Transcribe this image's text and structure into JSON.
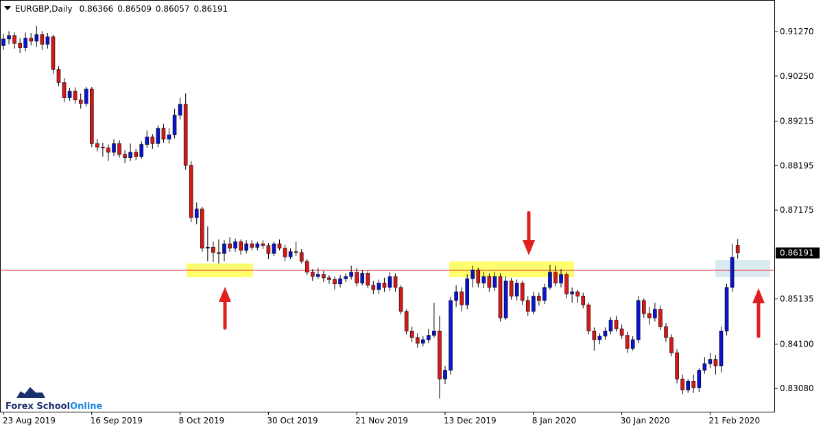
{
  "chart_data": {
    "type": "candlestick",
    "title": "EURGBP,Daily",
    "categories": [
      "23 Aug 2019",
      null,
      null,
      null,
      null,
      null,
      null,
      null,
      null,
      null,
      null,
      null,
      null,
      null,
      null,
      null,
      "16 Sep 2019",
      null,
      null,
      null,
      null,
      null,
      null,
      null,
      null,
      null,
      null,
      null,
      null,
      null,
      null,
      null,
      "8 Oct 2019",
      null,
      null,
      null,
      null,
      null,
      null,
      null,
      null,
      null,
      null,
      null,
      null,
      null,
      null,
      null,
      "30 Oct 2019",
      null,
      null,
      null,
      null,
      null,
      null,
      null,
      null,
      null,
      null,
      null,
      null,
      null,
      null,
      null,
      "21 Nov 2019",
      null,
      null,
      null,
      null,
      null,
      null,
      null,
      null,
      null,
      null,
      null,
      null,
      null,
      null,
      null,
      "13 Dec 2019",
      null,
      null,
      null,
      null,
      null,
      null,
      null,
      null,
      null,
      null,
      null,
      null,
      null,
      null,
      null,
      "8 Jan 2020",
      null,
      null,
      null,
      null,
      null,
      null,
      null,
      null,
      null,
      null,
      null,
      null,
      null,
      null,
      null,
      "30 Jan 2020",
      null,
      null,
      null,
      null,
      null,
      null,
      null,
      null,
      null,
      null,
      null,
      null,
      null,
      null,
      null,
      "21 Feb 2020",
      null,
      null,
      null,
      null,
      null
    ],
    "open": [
      0.9095,
      0.911,
      0.9118,
      0.91,
      0.909,
      0.9112,
      0.9105,
      0.912,
      0.9098,
      0.9115,
      0.904,
      0.901,
      0.8975,
      0.899,
      0.897,
      0.8962,
      0.8995,
      0.887,
      0.8862,
      0.886,
      0.885,
      0.887,
      0.8845,
      0.8838,
      0.885,
      0.884,
      0.8868,
      0.8885,
      0.887,
      0.8905,
      0.888,
      0.889,
      0.8935,
      0.896,
      0.882,
      0.87,
      0.872,
      0.863,
      0.8632,
      0.862,
      0.8618,
      0.864,
      0.863,
      0.8645,
      0.8625,
      0.864,
      0.8632,
      0.864,
      0.8636,
      0.8618,
      0.864,
      0.863,
      0.861,
      0.8622,
      0.862,
      0.86,
      0.8575,
      0.8565,
      0.857,
      0.8562,
      0.8558,
      0.8548,
      0.856,
      0.8565,
      0.8575,
      0.855,
      0.8572,
      0.8545,
      0.8535,
      0.855,
      0.854,
      0.8565,
      0.854,
      0.8485,
      0.844,
      0.8425,
      0.8412,
      0.842,
      0.843,
      0.844,
      0.833,
      0.835,
      0.851,
      0.853,
      0.85,
      0.856,
      0.858,
      0.855,
      0.8565,
      0.854,
      0.8565,
      0.847,
      0.8555,
      0.852,
      0.855,
      0.851,
      0.8485,
      0.852,
      0.851,
      0.854,
      0.8575,
      0.855,
      0.857,
      0.8525,
      0.853,
      0.852,
      0.85,
      0.844,
      0.842,
      0.8428,
      0.844,
      0.8465,
      0.8445,
      0.843,
      0.84,
      0.842,
      0.851,
      0.848,
      0.847,
      0.849,
      0.845,
      0.8425,
      0.839,
      0.833,
      0.8305,
      0.8325,
      0.831,
      0.835,
      0.8365,
      0.8375,
      0.836,
      0.844,
      0.854,
      0.86366
    ],
    "high": [
      0.9122,
      0.9128,
      0.9125,
      0.9112,
      0.9125,
      0.9124,
      0.914,
      0.9128,
      0.9124,
      0.912,
      0.9048,
      0.902,
      0.8998,
      0.8999,
      0.8985,
      0.9,
      0.9,
      0.888,
      0.8872,
      0.8868,
      0.888,
      0.8878,
      0.8855,
      0.887,
      0.8858,
      0.8875,
      0.89,
      0.8892,
      0.8912,
      0.8915,
      0.8905,
      0.895,
      0.8975,
      0.8985,
      0.883,
      0.8735,
      0.8725,
      0.868,
      0.8645,
      0.865,
      0.8648,
      0.8655,
      0.8652,
      0.865,
      0.8648,
      0.8648,
      0.8645,
      0.8648,
      0.8642,
      0.8645,
      0.865,
      0.8638,
      0.863,
      0.8645,
      0.8628,
      0.8605,
      0.8582,
      0.8585,
      0.8578,
      0.8568,
      0.8565,
      0.8568,
      0.8572,
      0.859,
      0.8585,
      0.858,
      0.8578,
      0.8555,
      0.8558,
      0.8562,
      0.8575,
      0.8572,
      0.8545,
      0.849,
      0.845,
      0.8435,
      0.8428,
      0.8445,
      0.8505,
      0.8475,
      0.836,
      0.8518,
      0.8545,
      0.854,
      0.857,
      0.859,
      0.8585,
      0.8575,
      0.8572,
      0.8575,
      0.8572,
      0.8565,
      0.8562,
      0.8558,
      0.8555,
      0.852,
      0.853,
      0.8528,
      0.8548,
      0.8592,
      0.859,
      0.8582,
      0.8575,
      0.854,
      0.8535,
      0.8528,
      0.8505,
      0.8448,
      0.8435,
      0.8448,
      0.8472,
      0.8475,
      0.8455,
      0.8438,
      0.8428,
      0.852,
      0.8515,
      0.8495,
      0.8505,
      0.8498,
      0.8458,
      0.8432,
      0.8398,
      0.834,
      0.833,
      0.834,
      0.8355,
      0.838,
      0.839,
      0.8385,
      0.845,
      0.8548,
      0.864,
      0.86509
    ],
    "low": [
      0.9085,
      0.9098,
      0.9088,
      0.9078,
      0.9082,
      0.9095,
      0.9092,
      0.9085,
      0.9088,
      0.903,
      0.9002,
      0.8965,
      0.8968,
      0.8962,
      0.895,
      0.8955,
      0.8862,
      0.8852,
      0.884,
      0.883,
      0.8842,
      0.8838,
      0.8825,
      0.883,
      0.8832,
      0.8835,
      0.886,
      0.8858,
      0.8862,
      0.8872,
      0.887,
      0.8882,
      0.8925,
      0.881,
      0.869,
      0.8685,
      0.8622,
      0.86,
      0.8598,
      0.8595,
      0.86,
      0.8622,
      0.8622,
      0.8615,
      0.8618,
      0.8625,
      0.8625,
      0.8628,
      0.8605,
      0.8612,
      0.8625,
      0.86,
      0.8605,
      0.8612,
      0.8595,
      0.8568,
      0.8555,
      0.856,
      0.8552,
      0.8548,
      0.8535,
      0.854,
      0.8552,
      0.8558,
      0.8542,
      0.8545,
      0.8538,
      0.8525,
      0.8525,
      0.853,
      0.8532,
      0.853,
      0.8478,
      0.8432,
      0.8415,
      0.8402,
      0.8405,
      0.8412,
      0.8425,
      0.8285,
      0.8318,
      0.834,
      0.8495,
      0.8485,
      0.849,
      0.854,
      0.854,
      0.8538,
      0.853,
      0.8532,
      0.8462,
      0.8465,
      0.8512,
      0.851,
      0.85,
      0.8475,
      0.8478,
      0.8498,
      0.8502,
      0.8535,
      0.8542,
      0.854,
      0.8515,
      0.8505,
      0.8505,
      0.8492,
      0.8432,
      0.8395,
      0.841,
      0.842,
      0.8432,
      0.8438,
      0.8422,
      0.839,
      0.8395,
      0.8412,
      0.847,
      0.8455,
      0.8462,
      0.8442,
      0.8415,
      0.8382,
      0.832,
      0.8295,
      0.8298,
      0.8298,
      0.83,
      0.8342,
      0.8355,
      0.834,
      0.8345,
      0.843,
      0.853,
      0.86057
    ],
    "close": [
      0.911,
      0.9118,
      0.91,
      0.909,
      0.9112,
      0.9105,
      0.912,
      0.9098,
      0.9115,
      0.904,
      0.901,
      0.8975,
      0.899,
      0.897,
      0.8962,
      0.8995,
      0.887,
      0.8862,
      0.886,
      0.885,
      0.887,
      0.8845,
      0.8838,
      0.885,
      0.884,
      0.8868,
      0.8885,
      0.887,
      0.8905,
      0.888,
      0.889,
      0.8935,
      0.896,
      0.882,
      0.87,
      0.872,
      0.863,
      0.8632,
      0.862,
      0.8618,
      0.864,
      0.863,
      0.8645,
      0.8625,
      0.864,
      0.8632,
      0.864,
      0.8636,
      0.8618,
      0.864,
      0.863,
      0.861,
      0.8622,
      0.862,
      0.86,
      0.8575,
      0.8565,
      0.857,
      0.8562,
      0.8558,
      0.8548,
      0.856,
      0.8565,
      0.8575,
      0.855,
      0.8572,
      0.8545,
      0.8535,
      0.855,
      0.854,
      0.8565,
      0.854,
      0.8485,
      0.844,
      0.8425,
      0.8412,
      0.842,
      0.843,
      0.844,
      0.833,
      0.835,
      0.851,
      0.853,
      0.85,
      0.856,
      0.858,
      0.855,
      0.8565,
      0.854,
      0.8565,
      0.847,
      0.8555,
      0.852,
      0.855,
      0.851,
      0.8485,
      0.852,
      0.851,
      0.854,
      0.8575,
      0.855,
      0.857,
      0.8525,
      0.853,
      0.852,
      0.85,
      0.844,
      0.842,
      0.8428,
      0.844,
      0.8465,
      0.8445,
      0.843,
      0.84,
      0.842,
      0.851,
      0.848,
      0.847,
      0.849,
      0.845,
      0.8425,
      0.839,
      0.833,
      0.8305,
      0.8325,
      0.831,
      0.835,
      0.8365,
      0.8375,
      0.836,
      0.844,
      0.854,
      0.8609,
      0.86191
    ],
    "up_color": "#0a14d0",
    "down_color": "#d81818",
    "ylim": [
      0.82547,
      0.91995
    ],
    "yticks": [
      {
        "value": 0.9127,
        "label": "0.91270"
      },
      {
        "value": 0.9025,
        "label": "0.90250"
      },
      0.89215,
      0.88195,
      0.87175,
      0.85135,
      {
        "value": 0.841,
        "label": "0.84100"
      },
      {
        "value": 0.8308,
        "label": "0.83080"
      }
    ]
  },
  "logo": {
    "part1": "Forex School",
    "part2": "Online"
  }
}
